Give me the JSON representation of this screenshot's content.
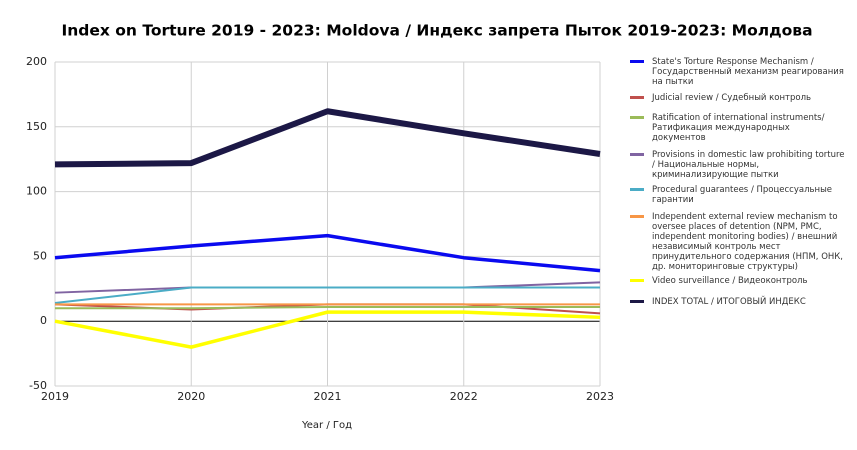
{
  "chart_data": {
    "type": "line",
    "title": "Index on Torture 2019 - 2023: Moldova / Индекс запрета Пыток 2019-2023: Молдова",
    "x_label": "Year / Год",
    "x": [
      2019,
      2020,
      2021,
      2022,
      2023
    ],
    "xlim": [
      2019,
      2023
    ],
    "xticks": [
      2019,
      2020,
      2021,
      2022,
      2023
    ],
    "ylim": [
      -50,
      200
    ],
    "yticks": [
      -50,
      0,
      50,
      100,
      150,
      200
    ],
    "grid": true,
    "legend": "right",
    "series": [
      {
        "name": "State's Torture Response Mechanism / Государственный механизм реагирования на пытки",
        "color": "#0a0aef",
        "values": [
          49,
          58,
          66,
          49,
          39
        ]
      },
      {
        "name": "Judicial review / Судебный контроль",
        "color": "#c0504d",
        "values": [
          13,
          9,
          13,
          13,
          6
        ]
      },
      {
        "name": "Ratification of international instruments/ Ратификация международных документов",
        "color": "#9bbb59",
        "values": [
          10,
          10,
          11,
          11,
          11
        ]
      },
      {
        "name": "Provisions in domestic law prohibiting torture / Национальные нормы, криминализирующие пытки",
        "color": "#8064a2",
        "values": [
          22,
          26,
          26,
          26,
          30
        ]
      },
      {
        "name": "Procedural guarantees / Процессуальные гарантии",
        "color": "#4bacc6",
        "values": [
          14,
          26,
          26,
          26,
          26
        ]
      },
      {
        "name": "Independent external review mechanism to oversee places of detention (NPM, PMC, independent monitoring bodies) / внешний независимый контроль мест принудительного содержания (НПМ, ОНК, др. мониторинговые структуры)",
        "color": "#f79646",
        "values": [
          13,
          13,
          13,
          13,
          13
        ]
      },
      {
        "name": "Video surveillance / Видеоконтроль",
        "color": "#ffff00",
        "values": [
          0,
          -20,
          7,
          7,
          3
        ]
      },
      {
        "name": "INDEX TOTAL /  ИТОГОВЫЙ ИНДЕКС",
        "color": "#1c1846",
        "values": [
          121,
          122,
          162,
          145,
          129
        ]
      }
    ]
  }
}
